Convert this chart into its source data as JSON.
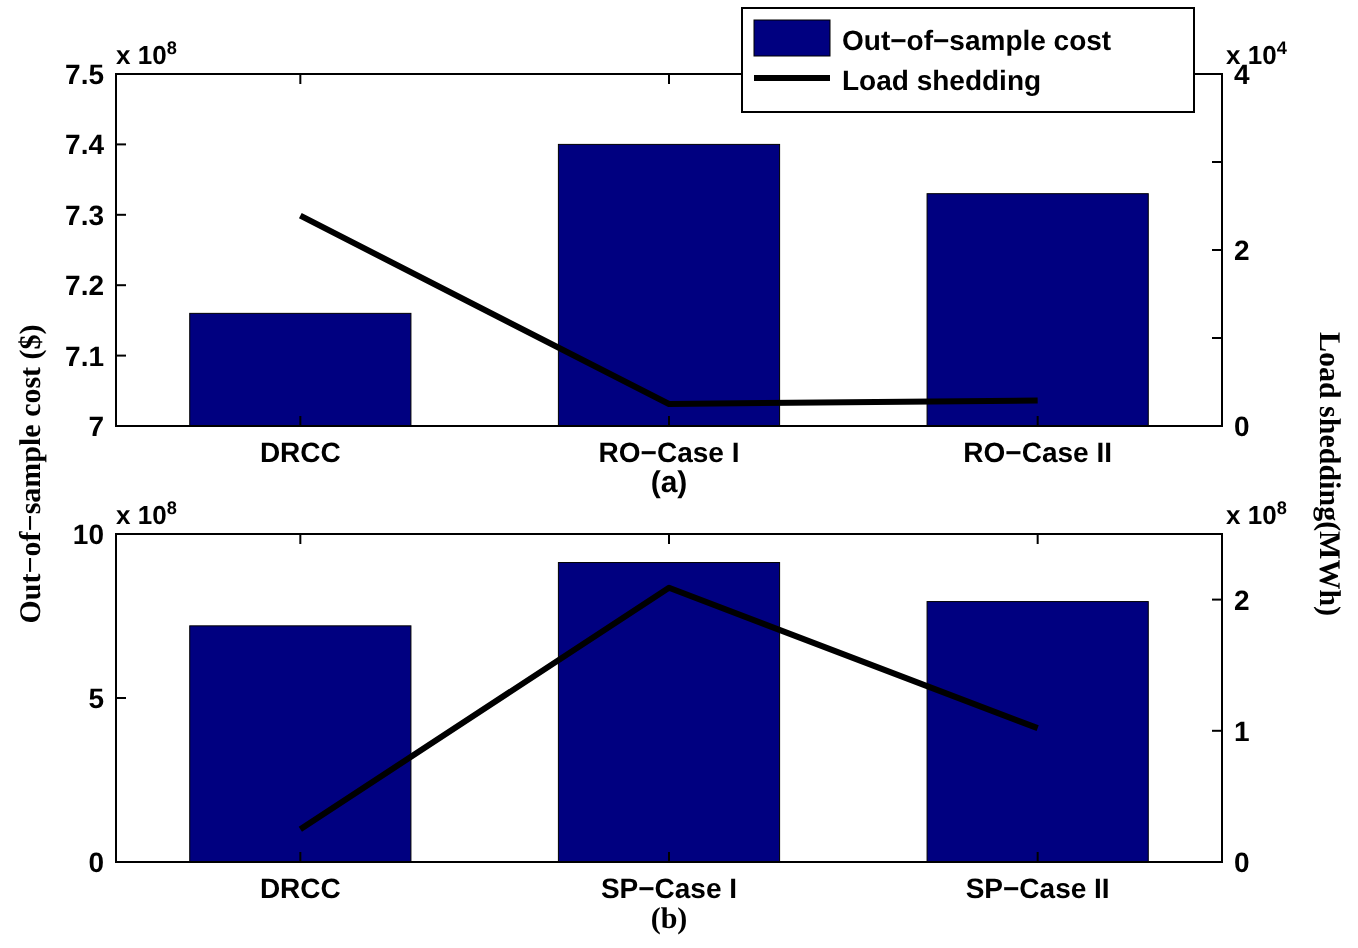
{
  "chart_data": [
    {
      "type": "bar",
      "title": "(a)",
      "ylabel": "Out−of−sample cost ($)",
      "y2label": "Load shedding(MWh)",
      "categories": [
        "DRCC",
        "RO−Case I",
        "RO−Case II"
      ],
      "series": [
        {
          "name": "Out−of−sample cost",
          "color": "#000080",
          "values": [
            7.16,
            7.4,
            7.33
          ]
        },
        {
          "name": "Load shedding",
          "type": "line",
          "axis": "y2",
          "color": "#000000",
          "values": [
            2.39,
            0.25,
            0.29
          ]
        }
      ],
      "ylim": [
        7,
        7.5
      ],
      "yticks": [
        7,
        7.1,
        7.2,
        7.3,
        7.4,
        7.5
      ],
      "y2lim": [
        0,
        4
      ],
      "y2ticks": [
        0,
        {
          "value": 1,
          "label": null
        },
        2,
        {
          "value": 3,
          "label": null
        },
        4
      ],
      "annotations": [
        "x 10$^{8}$",
        "x 10$^{4}$"
      ],
      "legend": "top right",
      "grid": false,
      "marker": "none",
      "line_style": "solid"
    },
    {
      "type": "bar",
      "title": "(b)",
      "categories": [
        "DRCC",
        "SP−Case I",
        "SP−Case II"
      ],
      "series": [
        {
          "color": "#000080",
          "values": [
            7.2,
            9.13,
            7.94
          ]
        },
        {
          "type": "line",
          "axis": "y2",
          "color": "#000000",
          "values": [
            0.25,
            2.09,
            1.02
          ]
        }
      ],
      "ylim": [
        0,
        10
      ],
      "yticks": [
        0,
        5,
        10
      ],
      "y2lim": [
        0,
        2.5
      ],
      "y2ticks": [
        0,
        1,
        2
      ],
      "annotations": [
        "x 10$^{8}$",
        "x 10$^{8}$"
      ],
      "legend": false,
      "grid": false,
      "marker": "none",
      "line_style": "solid"
    }
  ]
}
